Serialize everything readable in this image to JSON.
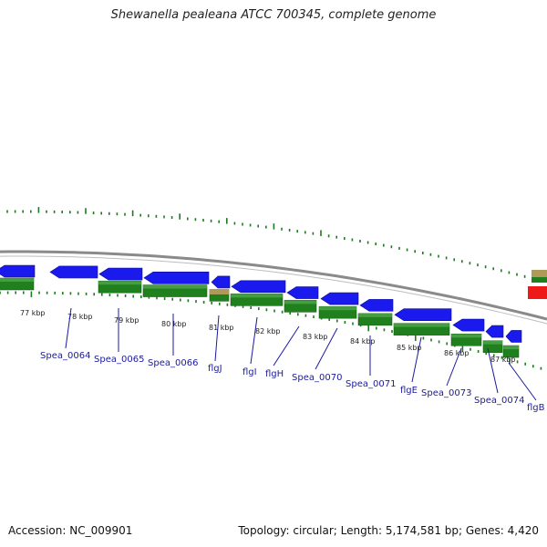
{
  "title": "Shewanella pealeana ATCC 700345, complete genome",
  "footer": {
    "accession": "Accession: NC_009901",
    "stats": "Topology: circular; Length: 5,174,581 bp; Genes: 4,420"
  },
  "colors": {
    "forward": "#1a1aee",
    "reverse": "#21801e",
    "trna": "#b09a5a",
    "rna": "#ee1a1a",
    "backbone": "#8a8a8a",
    "tick": "#1f7a1f",
    "gene_label": "#1a1aa0"
  },
  "kbp_labels": [
    "77 kbp",
    "78 kbp",
    "79 kbp",
    "80 kbp",
    "81 kbp",
    "82 kbp",
    "83 kbp",
    "84 kbp",
    "85 kbp",
    "86 kbp",
    "87 kbp"
  ],
  "gene_labels": [
    "Spea_0064",
    "Spea_0065",
    "Spea_0066",
    "flgJ",
    "flgI",
    "flgH",
    "Spea_0070",
    "Spea_0071",
    "flgE",
    "Spea_0073",
    "Spea_0074",
    "flgB"
  ]
}
